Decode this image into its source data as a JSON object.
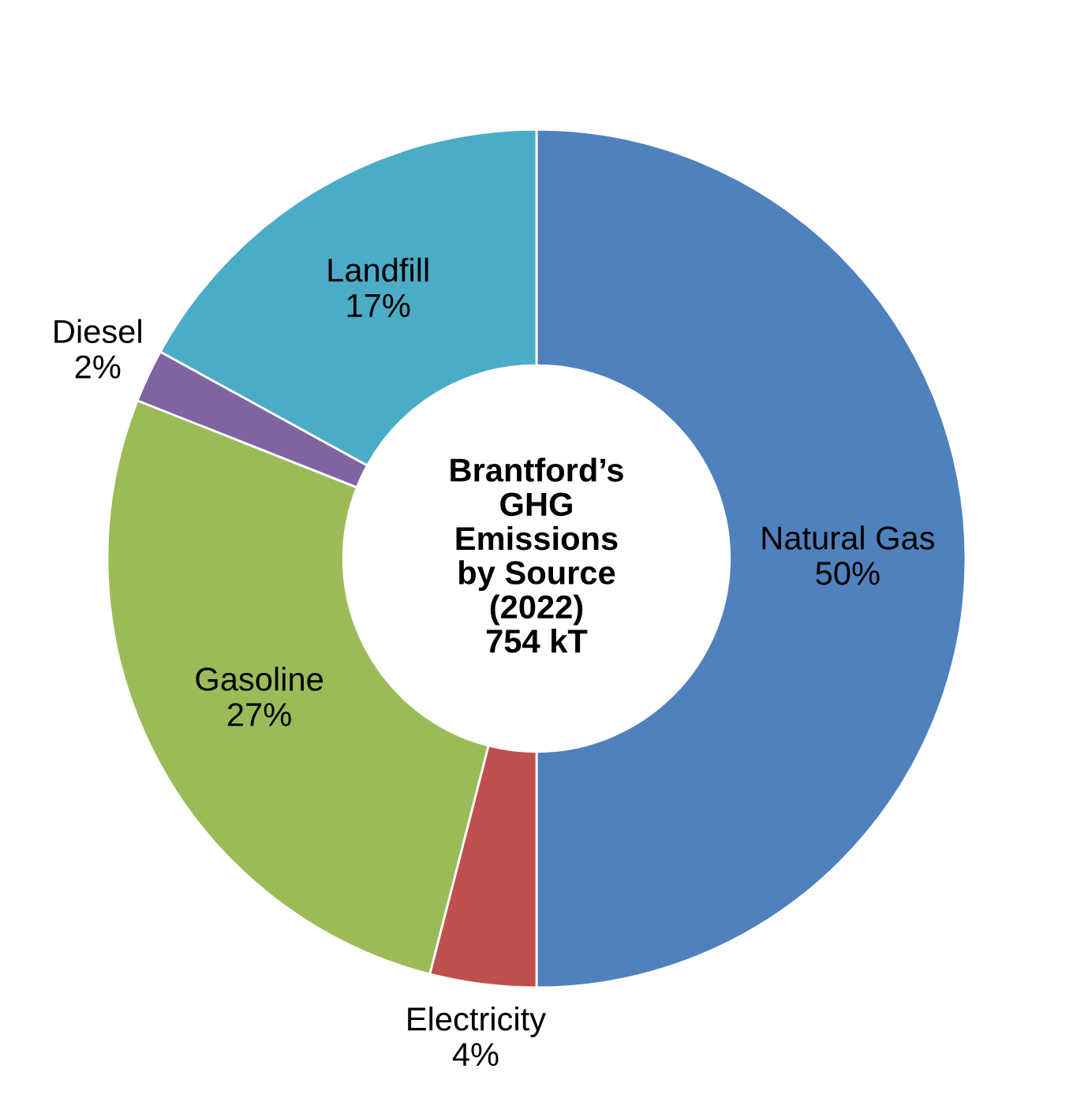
{
  "chart_data": {
    "type": "donut",
    "title": "Brantford’s\nGHG\nEmissions\nby Source\n(2022)\n754 kT",
    "categories": [
      "Natural Gas",
      "Electricity",
      "Gasoline",
      "Diesel",
      "Landfill"
    ],
    "values": [
      50,
      4,
      27,
      2,
      17
    ],
    "value_labels": [
      "50%",
      "4%",
      "27%",
      "2%",
      "17%"
    ],
    "colors": [
      "#4f81bd",
      "#c0504d",
      "#9bbb59",
      "#8064a2",
      "#4bacc6"
    ],
    "legend": false
  }
}
